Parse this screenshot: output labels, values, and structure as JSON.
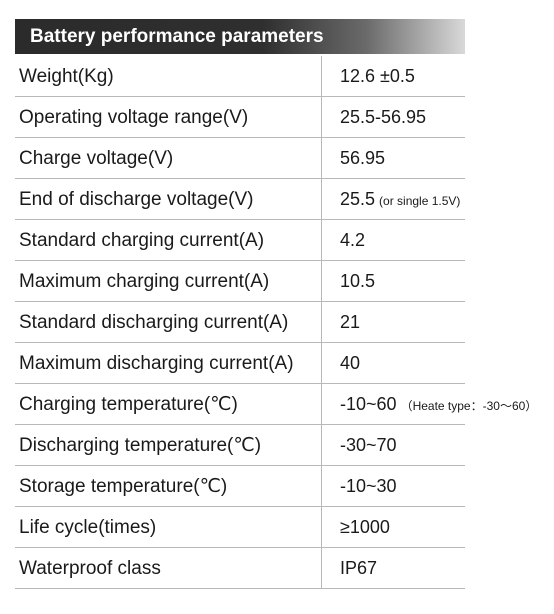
{
  "header": {
    "title": "Battery performance parameters",
    "colors": {
      "header_bg": "#2b2b2b",
      "header_text": "#ffffff",
      "divider": "#b8b8b8"
    }
  },
  "rows": [
    {
      "label": "Weight(Kg)",
      "value": "12.6 ±0.5",
      "note": ""
    },
    {
      "label": "Operating voltage range(V)",
      "value": "25.5-56.95",
      "note": ""
    },
    {
      "label": "Charge voltage(V)",
      "value": "56.95",
      "note": ""
    },
    {
      "label": "End of discharge voltage(V)",
      "value": "25.5",
      "note": "(or single 1.5V)"
    },
    {
      "label": "Standard charging current(A)",
      "value": "4.2",
      "note": ""
    },
    {
      "label": "Maximum charging current(A)",
      "value": "10.5",
      "note": ""
    },
    {
      "label": "Standard discharging current(A)",
      "value": "21",
      "note": ""
    },
    {
      "label": "Maximum discharging current(A)",
      "value": "40",
      "note": ""
    },
    {
      "label": "Charging temperature(℃)",
      "value": "-10~60",
      "note": "（Heate type：-30～60）"
    },
    {
      "label": "Discharging temperature(℃)",
      "value": "-30~70",
      "note": ""
    },
    {
      "label": "Storage temperature(℃)",
      "value": "-10~30",
      "note": ""
    },
    {
      "label": "Life cycle(times)",
      "value": "≥1000",
      "note": ""
    },
    {
      "label": "Waterproof class",
      "value": "IP67",
      "note": ""
    }
  ]
}
